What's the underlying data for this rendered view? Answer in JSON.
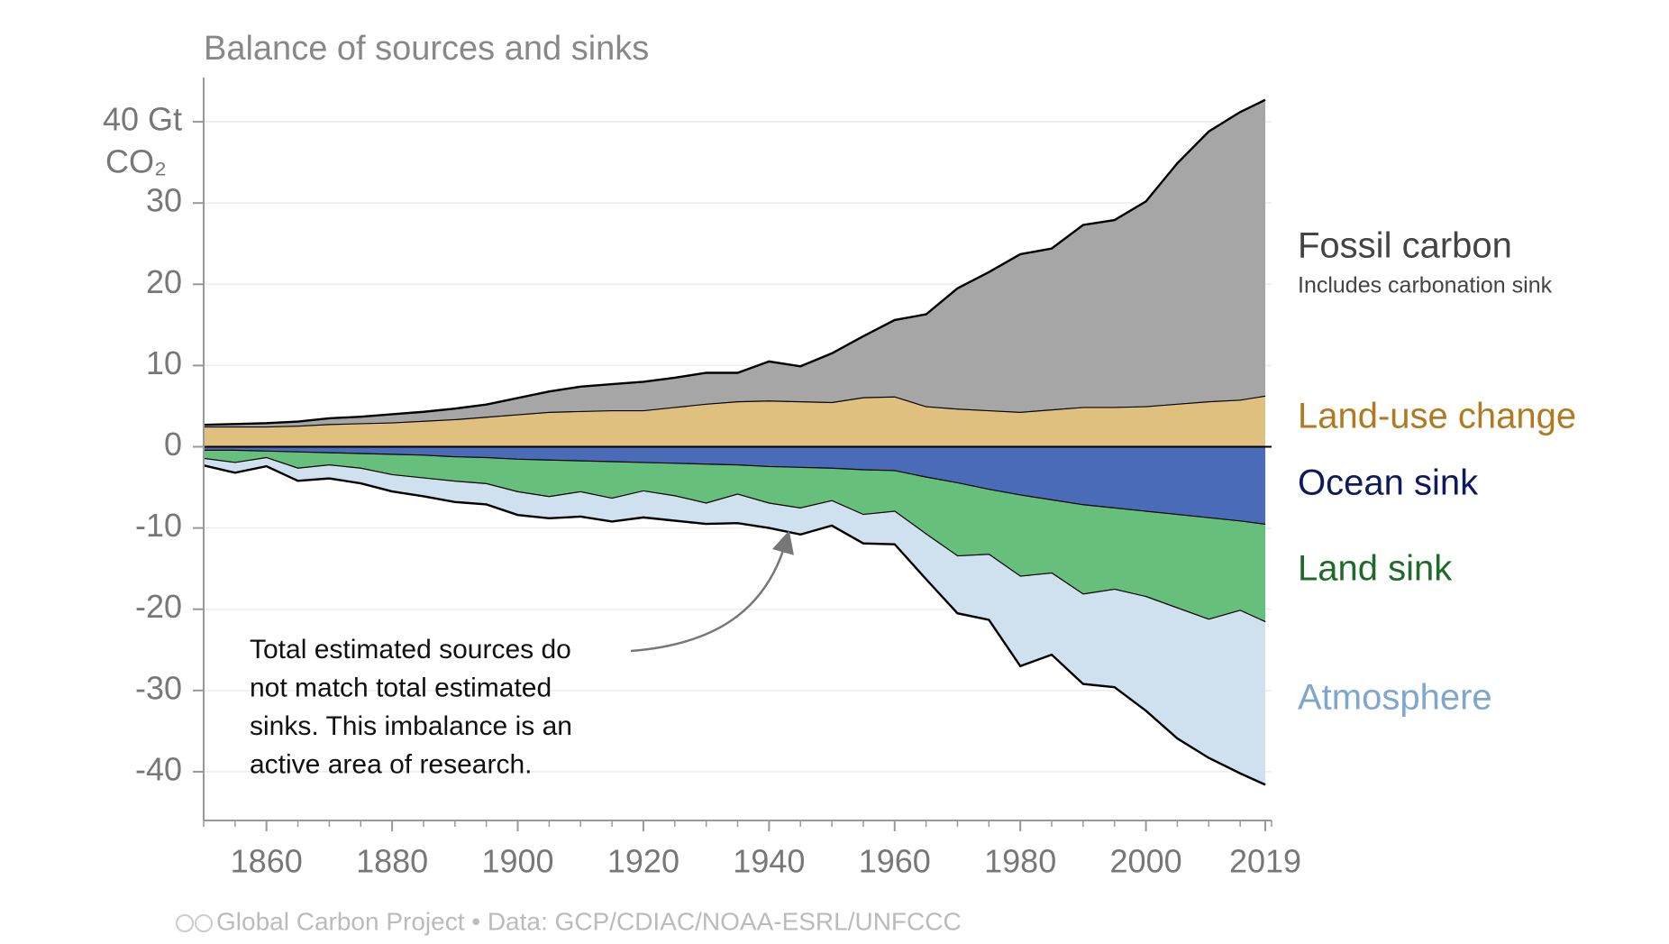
{
  "chart_data": {
    "type": "stacked-area",
    "title": "Balance of sources and sinks",
    "ylabel": "CO₂",
    "x": [
      1850,
      1855,
      1860,
      1865,
      1870,
      1875,
      1880,
      1885,
      1890,
      1895,
      1900,
      1905,
      1910,
      1915,
      1920,
      1925,
      1930,
      1935,
      1940,
      1945,
      1950,
      1955,
      1960,
      1965,
      1970,
      1975,
      1980,
      1985,
      1990,
      1995,
      2000,
      2005,
      2010,
      2015,
      2019
    ],
    "series": [
      {
        "name": "Land-use change",
        "color": "#e0c07f",
        "label_color": "#b07a20",
        "values": [
          2.5,
          2.5,
          2.5,
          2.6,
          2.8,
          2.9,
          3.0,
          3.2,
          3.4,
          3.7,
          4.0,
          4.3,
          4.4,
          4.5,
          4.5,
          4.9,
          5.3,
          5.6,
          5.7,
          5.6,
          5.5,
          6.1,
          6.2,
          5.0,
          4.7,
          4.5,
          4.3,
          4.6,
          4.9,
          4.9,
          5.0,
          5.3,
          5.6,
          5.8,
          6.3
        ]
      },
      {
        "name": "Fossil carbon",
        "color": "#a6a6a6",
        "label_color": "#444444",
        "values": [
          0.2,
          0.3,
          0.4,
          0.5,
          0.7,
          0.8,
          1.0,
          1.1,
          1.3,
          1.5,
          2.0,
          2.5,
          3.0,
          3.2,
          3.5,
          3.6,
          3.8,
          3.5,
          4.8,
          4.3,
          6.0,
          7.5,
          9.4,
          11.3,
          14.8,
          17.0,
          19.4,
          19.8,
          22.4,
          23.0,
          25.2,
          29.6,
          33.2,
          35.4,
          36.4
        ]
      },
      {
        "name": "Ocean sink",
        "color": "#4a6bb8",
        "label_color": "#0d1a5e",
        "values": [
          -0.5,
          -0.5,
          -0.6,
          -0.7,
          -0.8,
          -0.9,
          -1.0,
          -1.1,
          -1.3,
          -1.4,
          -1.6,
          -1.7,
          -1.8,
          -1.9,
          -2.0,
          -2.1,
          -2.2,
          -2.3,
          -2.5,
          -2.6,
          -2.7,
          -2.9,
          -3.0,
          -3.8,
          -4.5,
          -5.3,
          -6.0,
          -6.6,
          -7.2,
          -7.6,
          -8.0,
          -8.4,
          -8.8,
          -9.2,
          -9.6
        ]
      },
      {
        "name": "Land sink",
        "color": "#66bf7a",
        "label_color": "#1e6a2a",
        "values": [
          -1.0,
          -1.5,
          -0.8,
          -2.0,
          -1.5,
          -1.8,
          -2.5,
          -2.8,
          -3.0,
          -3.2,
          -4.0,
          -4.5,
          -3.8,
          -4.5,
          -3.5,
          -4.0,
          -4.8,
          -3.6,
          -4.5,
          -5.0,
          -4.0,
          -5.5,
          -5.0,
          -7.0,
          -9.0,
          -8.0,
          -10.0,
          -9.0,
          -11.0,
          -10.0,
          -10.5,
          -11.5,
          -12.5,
          -11.0,
          -12.0
        ]
      },
      {
        "name": "Atmosphere",
        "color": "#cfe0ef",
        "label_color": "#7fa6cc",
        "values": [
          -0.8,
          -1.2,
          -1.0,
          -1.5,
          -1.6,
          -1.8,
          -2.0,
          -2.2,
          -2.5,
          -2.5,
          -2.8,
          -2.6,
          -3.0,
          -2.8,
          -3.2,
          -3.0,
          -2.5,
          -3.5,
          -3.0,
          -3.2,
          -3.0,
          -3.5,
          -4.0,
          -5.5,
          -7.0,
          -8.0,
          -11.0,
          -10.0,
          -11.0,
          -12.0,
          -14.0,
          -16.0,
          -17.0,
          -20.0,
          -20.0
        ]
      }
    ],
    "series_note": "Includes carbonation sink",
    "annotation": [
      "Total estimated sources do",
      "not match total estimated",
      "sinks. This imbalance is an",
      "active area of research."
    ],
    "source": "Global Carbon Project  •  Data: GCP/CDIAC/NOAA-ESRL/UNFCCC",
    "xlim": [
      1850,
      2020
    ],
    "xticks": [
      1860,
      1880,
      1900,
      1920,
      1940,
      1960,
      1980,
      2000,
      2019
    ],
    "ylim": [
      -46,
      45
    ],
    "yticks": [
      -40,
      -30,
      -20,
      -10,
      0,
      10,
      20,
      30,
      {
        "value": 40,
        "label": "40 Gt"
      }
    ],
    "grid": true
  }
}
